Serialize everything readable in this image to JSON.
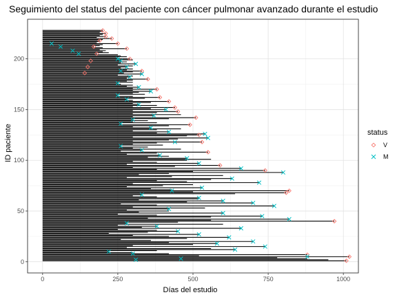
{
  "colors": {
    "V": "#F8766D",
    "M": "#00BFC4",
    "segment": "#000000",
    "grid_major": "#DEDEDE",
    "grid_minor": "#F0F0F0",
    "panel_border": "#333333"
  },
  "chart_data": {
    "type": "scatter",
    "title": "Seguimiento del status del paciente con cáncer pulmonar avanzado durante el estudio",
    "xlabel": "Días del estudio",
    "ylabel": "ID paciente",
    "xlim": [
      -50,
      1050
    ],
    "ylim": [
      -11,
      239
    ],
    "x_ticks": [
      0,
      250,
      500,
      750,
      1000
    ],
    "y_ticks": [
      0,
      50,
      100,
      150,
      200
    ],
    "grid": true,
    "legend_position": "right",
    "legend": {
      "title": "status",
      "entries": [
        {
          "key": "V",
          "label": "V",
          "marker": "diamond-open"
        },
        {
          "key": "M",
          "label": "M",
          "marker": "x"
        }
      ]
    },
    "series": [
      {
        "name": "V",
        "points": [
          [
            1010,
            1
          ],
          [
            1020,
            5
          ],
          [
            880,
            7
          ],
          [
            970,
            40
          ],
          [
            810,
            68
          ],
          [
            820,
            70
          ],
          [
            740,
            90
          ],
          [
            590,
            95
          ],
          [
            550,
            108
          ],
          [
            530,
            118
          ],
          [
            520,
            125
          ],
          [
            490,
            135
          ],
          [
            510,
            142
          ],
          [
            450,
            148
          ],
          [
            440,
            152
          ],
          [
            420,
            158
          ],
          [
            390,
            162
          ],
          [
            380,
            170
          ],
          [
            350,
            180
          ],
          [
            330,
            188
          ],
          [
            290,
            200
          ],
          [
            280,
            210
          ],
          [
            250,
            215
          ],
          [
            230,
            220
          ],
          [
            210,
            225
          ],
          [
            200,
            228
          ],
          [
            210,
            222
          ],
          [
            190,
            218
          ],
          [
            170,
            212
          ],
          [
            180,
            205
          ],
          [
            160,
            198
          ],
          [
            150,
            192
          ],
          [
            140,
            186
          ]
        ]
      },
      {
        "name": "M",
        "points": [
          [
            880,
            5
          ],
          [
            310,
            2
          ],
          [
            460,
            3
          ],
          [
            300,
            8
          ],
          [
            220,
            10
          ],
          [
            640,
            12
          ],
          [
            740,
            15
          ],
          [
            580,
            18
          ],
          [
            700,
            20
          ],
          [
            620,
            24
          ],
          [
            520,
            27
          ],
          [
            450,
            30
          ],
          [
            660,
            33
          ],
          [
            380,
            35
          ],
          [
            280,
            38
          ],
          [
            820,
            42
          ],
          [
            730,
            45
          ],
          [
            600,
            48
          ],
          [
            420,
            52
          ],
          [
            770,
            55
          ],
          [
            700,
            58
          ],
          [
            600,
            60
          ],
          [
            520,
            63
          ],
          [
            330,
            66
          ],
          [
            430,
            70
          ],
          [
            530,
            73
          ],
          [
            720,
            78
          ],
          [
            630,
            82
          ],
          [
            800,
            88
          ],
          [
            660,
            92
          ],
          [
            520,
            97
          ],
          [
            480,
            102
          ],
          [
            390,
            105
          ],
          [
            330,
            110
          ],
          [
            260,
            114
          ],
          [
            440,
            118
          ],
          [
            550,
            122
          ],
          [
            540,
            126
          ],
          [
            420,
            128
          ],
          [
            360,
            132
          ],
          [
            260,
            136
          ],
          [
            300,
            140
          ],
          [
            370,
            144
          ],
          [
            410,
            150
          ],
          [
            320,
            155
          ],
          [
            280,
            160
          ],
          [
            250,
            164
          ],
          [
            360,
            168
          ],
          [
            320,
            172
          ],
          [
            250,
            176
          ],
          [
            290,
            182
          ],
          [
            330,
            185
          ],
          [
            260,
            188
          ],
          [
            280,
            192
          ],
          [
            310,
            195
          ],
          [
            260,
            198
          ],
          [
            250,
            200
          ],
          [
            120,
            205
          ],
          [
            100,
            208
          ],
          [
            60,
            212
          ],
          [
            30,
            215
          ]
        ]
      }
    ],
    "segments": [
      [
        1,
        1010
      ],
      [
        2,
        950
      ],
      [
        3,
        880
      ],
      [
        4,
        780
      ],
      [
        5,
        1020
      ],
      [
        6,
        520
      ],
      [
        7,
        880
      ],
      [
        8,
        420
      ],
      [
        9,
        300
      ],
      [
        10,
        220
      ],
      [
        11,
        380
      ],
      [
        12,
        640
      ],
      [
        13,
        560
      ],
      [
        14,
        280
      ],
      [
        15,
        740
      ],
      [
        16,
        300
      ],
      [
        17,
        500
      ],
      [
        18,
        580
      ],
      [
        19,
        420
      ],
      [
        20,
        700
      ],
      [
        21,
        360
      ],
      [
        22,
        260
      ],
      [
        23,
        480
      ],
      [
        24,
        620
      ],
      [
        25,
        420
      ],
      [
        26,
        300
      ],
      [
        27,
        520
      ],
      [
        28,
        220
      ],
      [
        29,
        350
      ],
      [
        30,
        450
      ],
      [
        31,
        380
      ],
      [
        32,
        250
      ],
      [
        33,
        660
      ],
      [
        34,
        330
      ],
      [
        35,
        380
      ],
      [
        36,
        250
      ],
      [
        37,
        600
      ],
      [
        38,
        280
      ],
      [
        39,
        450
      ],
      [
        40,
        970
      ],
      [
        41,
        560
      ],
      [
        42,
        820
      ],
      [
        43,
        350
      ],
      [
        44,
        560
      ],
      [
        45,
        730
      ],
      [
        46,
        380
      ],
      [
        47,
        250
      ],
      [
        48,
        600
      ],
      [
        49,
        320
      ],
      [
        50,
        420
      ],
      [
        51,
        280
      ],
      [
        52,
        420
      ],
      [
        53,
        540
      ],
      [
        54,
        300
      ],
      [
        55,
        770
      ],
      [
        56,
        380
      ],
      [
        57,
        260
      ],
      [
        58,
        700
      ],
      [
        59,
        480
      ],
      [
        60,
        600
      ],
      [
        61,
        320
      ],
      [
        62,
        520
      ],
      [
        63,
        520
      ],
      [
        64,
        380
      ],
      [
        65,
        300
      ],
      [
        66,
        330
      ],
      [
        67,
        640
      ],
      [
        68,
        810
      ],
      [
        69,
        500
      ],
      [
        70,
        820
      ],
      [
        71,
        430
      ],
      [
        72,
        360
      ],
      [
        73,
        530
      ],
      [
        74,
        280
      ],
      [
        75,
        400
      ],
      [
        76,
        500
      ],
      [
        77,
        300
      ],
      [
        78,
        720
      ],
      [
        79,
        480
      ],
      [
        80,
        380
      ],
      [
        81,
        560
      ],
      [
        82,
        630
      ],
      [
        83,
        280
      ],
      [
        84,
        430
      ],
      [
        85,
        600
      ],
      [
        86,
        320
      ],
      [
        87,
        420
      ],
      [
        88,
        800
      ],
      [
        89,
        500
      ],
      [
        90,
        740
      ],
      [
        91,
        380
      ],
      [
        92,
        660
      ],
      [
        93,
        300
      ],
      [
        94,
        440
      ],
      [
        95,
        590
      ],
      [
        96,
        280
      ],
      [
        97,
        520
      ],
      [
        98,
        380
      ],
      [
        99,
        300
      ],
      [
        100,
        480
      ],
      [
        101,
        560
      ],
      [
        102,
        480
      ],
      [
        103,
        350
      ],
      [
        104,
        420
      ],
      [
        105,
        390
      ],
      [
        106,
        280
      ],
      [
        107,
        380
      ],
      [
        108,
        550
      ],
      [
        109,
        260
      ],
      [
        110,
        330
      ],
      [
        111,
        460
      ],
      [
        112,
        300
      ],
      [
        113,
        350
      ],
      [
        114,
        260
      ],
      [
        115,
        400
      ],
      [
        116,
        300
      ],
      [
        117,
        380
      ],
      [
        118,
        530
      ],
      [
        119,
        300
      ],
      [
        120,
        420
      ],
      [
        121,
        450
      ],
      [
        122,
        550
      ],
      [
        123,
        300
      ],
      [
        124,
        480
      ],
      [
        125,
        520
      ],
      [
        126,
        540
      ],
      [
        127,
        380
      ],
      [
        128,
        420
      ],
      [
        129,
        300
      ],
      [
        130,
        380
      ],
      [
        131,
        460
      ],
      [
        132,
        360
      ],
      [
        133,
        300
      ],
      [
        134,
        420
      ],
      [
        135,
        490
      ],
      [
        136,
        260
      ],
      [
        137,
        380
      ],
      [
        138,
        300
      ],
      [
        139,
        350
      ],
      [
        140,
        300
      ],
      [
        141,
        420
      ],
      [
        142,
        510
      ],
      [
        143,
        300
      ],
      [
        144,
        370
      ],
      [
        145,
        460
      ],
      [
        146,
        300
      ],
      [
        147,
        380
      ],
      [
        148,
        450
      ],
      [
        149,
        300
      ],
      [
        150,
        410
      ],
      [
        151,
        360
      ],
      [
        152,
        440
      ],
      [
        153,
        300
      ],
      [
        154,
        380
      ],
      [
        155,
        320
      ],
      [
        156,
        300
      ],
      [
        157,
        360
      ],
      [
        158,
        420
      ],
      [
        159,
        300
      ],
      [
        160,
        280
      ],
      [
        161,
        340
      ],
      [
        162,
        390
      ],
      [
        163,
        300
      ],
      [
        164,
        250
      ],
      [
        165,
        340
      ],
      [
        166,
        300
      ],
      [
        167,
        320
      ],
      [
        168,
        360
      ],
      [
        169,
        300
      ],
      [
        170,
        380
      ],
      [
        171,
        300
      ],
      [
        172,
        320
      ],
      [
        173,
        280
      ],
      [
        174,
        300
      ],
      [
        175,
        260
      ],
      [
        176,
        250
      ],
      [
        177,
        300
      ],
      [
        178,
        280
      ],
      [
        179,
        300
      ],
      [
        180,
        350
      ],
      [
        181,
        280
      ],
      [
        182,
        290
      ],
      [
        183,
        300
      ],
      [
        184,
        250
      ],
      [
        185,
        330
      ],
      [
        186,
        270
      ],
      [
        187,
        300
      ],
      [
        188,
        330
      ],
      [
        189,
        280
      ],
      [
        190,
        300
      ],
      [
        191,
        260
      ],
      [
        192,
        280
      ],
      [
        193,
        300
      ],
      [
        194,
        250
      ],
      [
        195,
        310
      ],
      [
        196,
        260
      ],
      [
        197,
        280
      ],
      [
        198,
        260
      ],
      [
        199,
        300
      ],
      [
        200,
        290
      ],
      [
        201,
        250
      ],
      [
        202,
        280
      ],
      [
        203,
        260
      ],
      [
        204,
        250
      ],
      [
        205,
        180
      ],
      [
        206,
        220
      ],
      [
        207,
        200
      ],
      [
        208,
        210
      ],
      [
        209,
        190
      ],
      [
        210,
        280
      ],
      [
        211,
        200
      ],
      [
        212,
        170
      ],
      [
        213,
        190
      ],
      [
        214,
        200
      ],
      [
        215,
        250
      ],
      [
        216,
        180
      ],
      [
        217,
        190
      ],
      [
        218,
        190
      ],
      [
        219,
        200
      ],
      [
        220,
        230
      ],
      [
        221,
        180
      ],
      [
        222,
        210
      ],
      [
        223,
        190
      ],
      [
        224,
        200
      ],
      [
        225,
        210
      ],
      [
        226,
        190
      ],
      [
        227,
        200
      ],
      [
        228,
        200
      ]
    ]
  }
}
